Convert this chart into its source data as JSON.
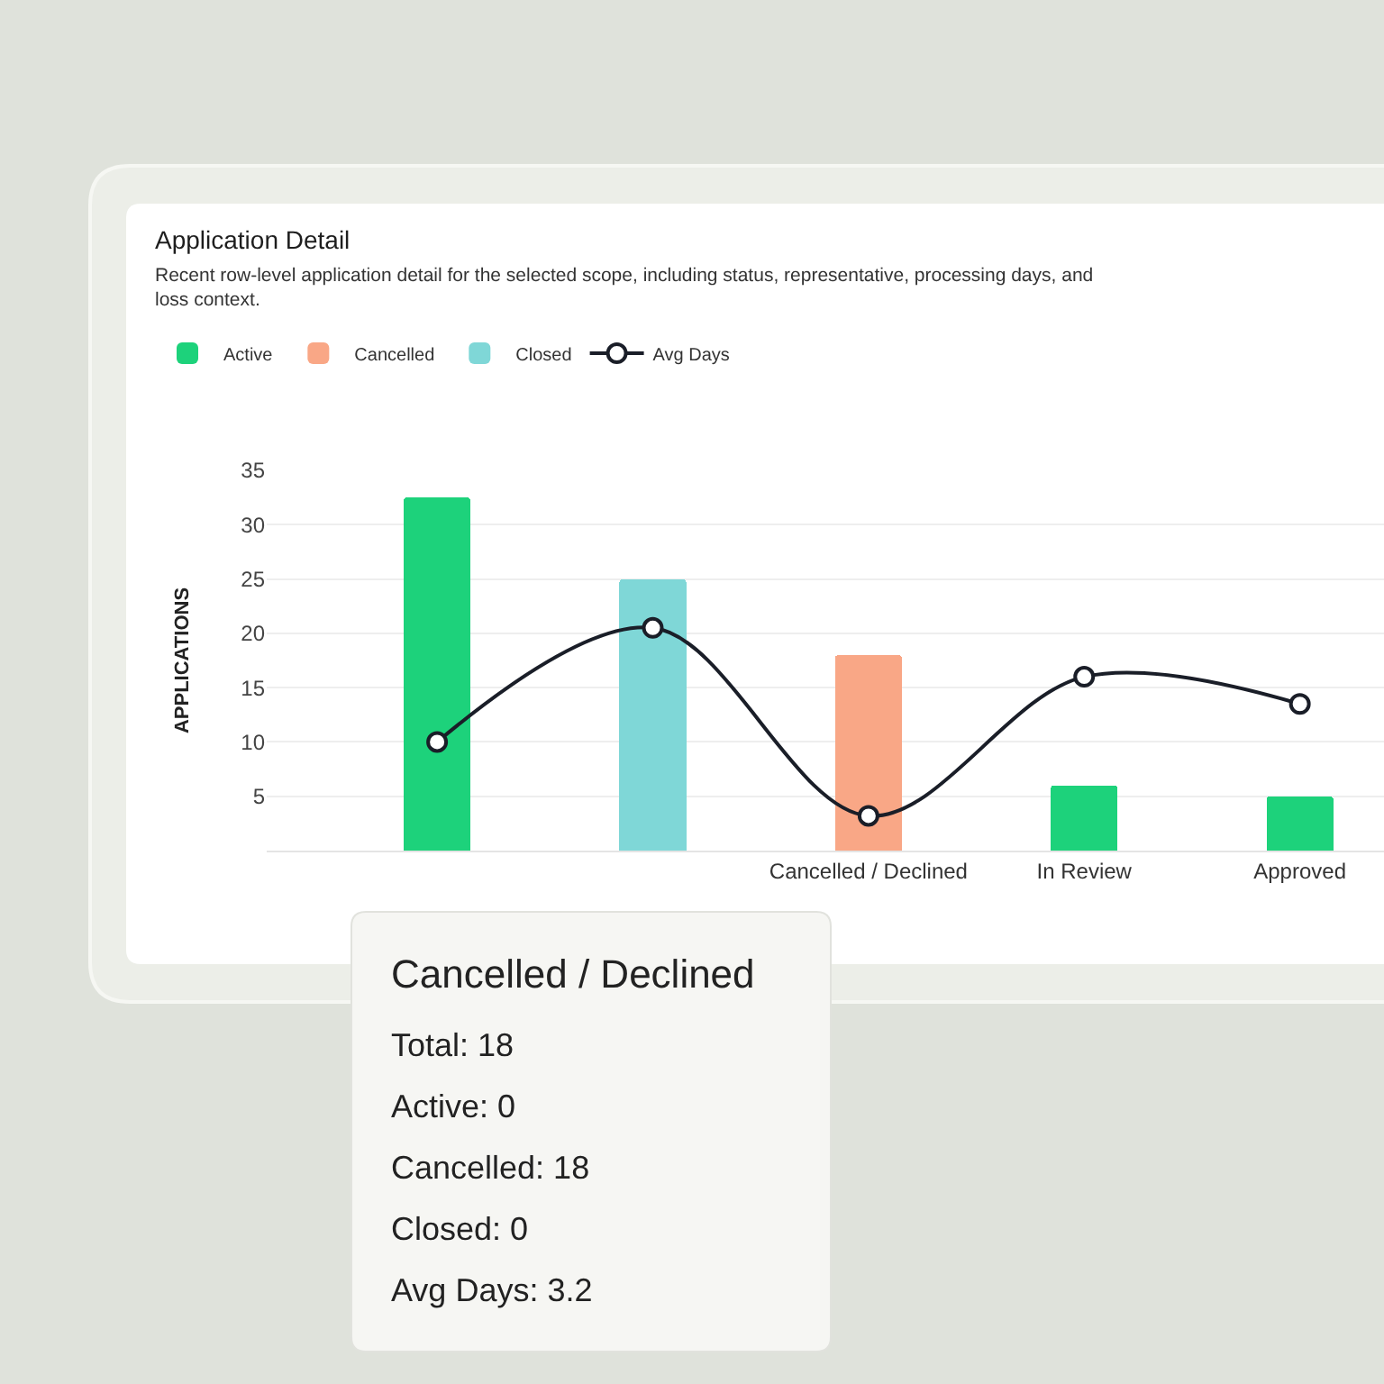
{
  "chart_data": {
    "type": "bar",
    "title": "Application Detail",
    "subtitle": "Recent row-level application detail for the selected scope, including status, representative, processing days, and loss context.",
    "ylabel": "APPLICATIONS",
    "categories": [
      null,
      null,
      "Cancelled / Declined",
      "In Review",
      "Approved"
    ],
    "series": [
      {
        "name": "Active",
        "color": "#1dd27b",
        "values": [
          32.5,
          null,
          null,
          6,
          5
        ]
      },
      {
        "name": "Cancelled",
        "color": "#f9a786",
        "values": [
          null,
          null,
          18,
          null,
          null
        ]
      },
      {
        "name": "Closed",
        "color": "#7fd7d7",
        "values": [
          null,
          25,
          null,
          null,
          null
        ]
      },
      {
        "name": "Avg Days",
        "type": "line",
        "color": "#1a1e28",
        "values": [
          10,
          20.5,
          3.2,
          16,
          13.5
        ]
      }
    ],
    "stacked": true,
    "ylim": [
      0,
      35
    ],
    "yticks": [
      5,
      10,
      15,
      20,
      25,
      30,
      35
    ],
    "grid": "y",
    "legend": "top left",
    "marker": "circle",
    "annotations": [
      "Cancelled / Declined",
      "Total: 18",
      "Active: 0",
      "Cancelled: 18",
      "Closed: 0",
      "Avg Days: 3.2"
    ]
  }
}
